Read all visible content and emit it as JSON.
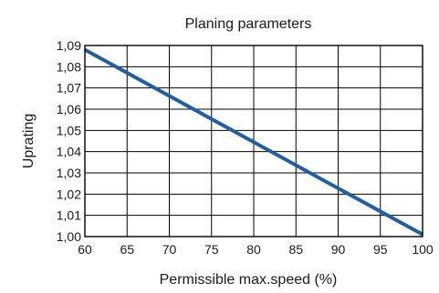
{
  "chart_data": {
    "type": "line",
    "title": "Planing parameters",
    "xlabel": "Permissible max.speed (%)",
    "ylabel": "Uprating",
    "xlim": [
      60,
      100
    ],
    "ylim": [
      1.0,
      1.09
    ],
    "x_ticks": [
      "60",
      "65",
      "70",
      "75",
      "80",
      "85",
      "90",
      "95",
      "100"
    ],
    "y_ticks": [
      "1,00",
      "1,01",
      "1,02",
      "1,03",
      "1,04",
      "1,05",
      "1,06",
      "1,07",
      "1,08",
      "1,09"
    ],
    "grid": true,
    "series": [
      {
        "x": [
          60,
          100
        ],
        "y": [
          1.088,
          1.001
        ],
        "color": "#1f5fa8"
      }
    ]
  }
}
